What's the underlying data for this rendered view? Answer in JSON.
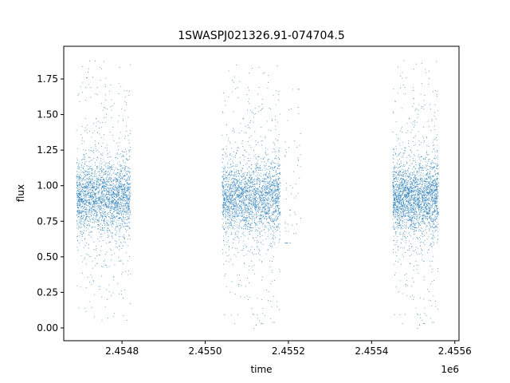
{
  "chart_data": {
    "type": "scatter",
    "title": "1SWASPJ021326.91-074704.5",
    "xlabel": "time",
    "ylabel": "flux",
    "x_offset_label": "1e6",
    "xlim": [
      2.45466,
      2.45561
    ],
    "ylim": [
      -0.09,
      1.98
    ],
    "x_ticks": [
      2.4548,
      2.455,
      2.4552,
      2.4554,
      2.4556
    ],
    "x_tick_labels": [
      "2.4548",
      "2.4550",
      "2.4552",
      "2.4554",
      "2.4556"
    ],
    "y_ticks": [
      0.0,
      0.25,
      0.5,
      0.75,
      1.0,
      1.25,
      1.5,
      1.75
    ],
    "y_tick_labels": [
      "0.00",
      "0.25",
      "0.50",
      "0.75",
      "1.00",
      "1.25",
      "1.50",
      "1.75"
    ],
    "grid": false,
    "marker_color": "#1f77b4",
    "series": [
      {
        "clusters": [
          {
            "x_start": 2.45469,
            "x_end": 2.45482,
            "y_center": 0.92,
            "y_spread": 0.12,
            "outlier_min": 0.05,
            "outlier_max": 1.88
          },
          {
            "x_start": 2.45504,
            "x_end": 2.45518,
            "y_center": 0.92,
            "y_spread": 0.12,
            "outlier_min": 0.0,
            "outlier_max": 1.85
          },
          {
            "x_start": 2.45519,
            "x_end": 2.45523,
            "y_center": 1.0,
            "y_spread": 0.3,
            "outlier_min": 0.6,
            "outlier_max": 1.68
          },
          {
            "x_start": 2.45545,
            "x_end": 2.45556,
            "y_center": 0.92,
            "y_spread": 0.12,
            "outlier_min": 0.0,
            "outlier_max": 1.88
          }
        ]
      }
    ]
  }
}
